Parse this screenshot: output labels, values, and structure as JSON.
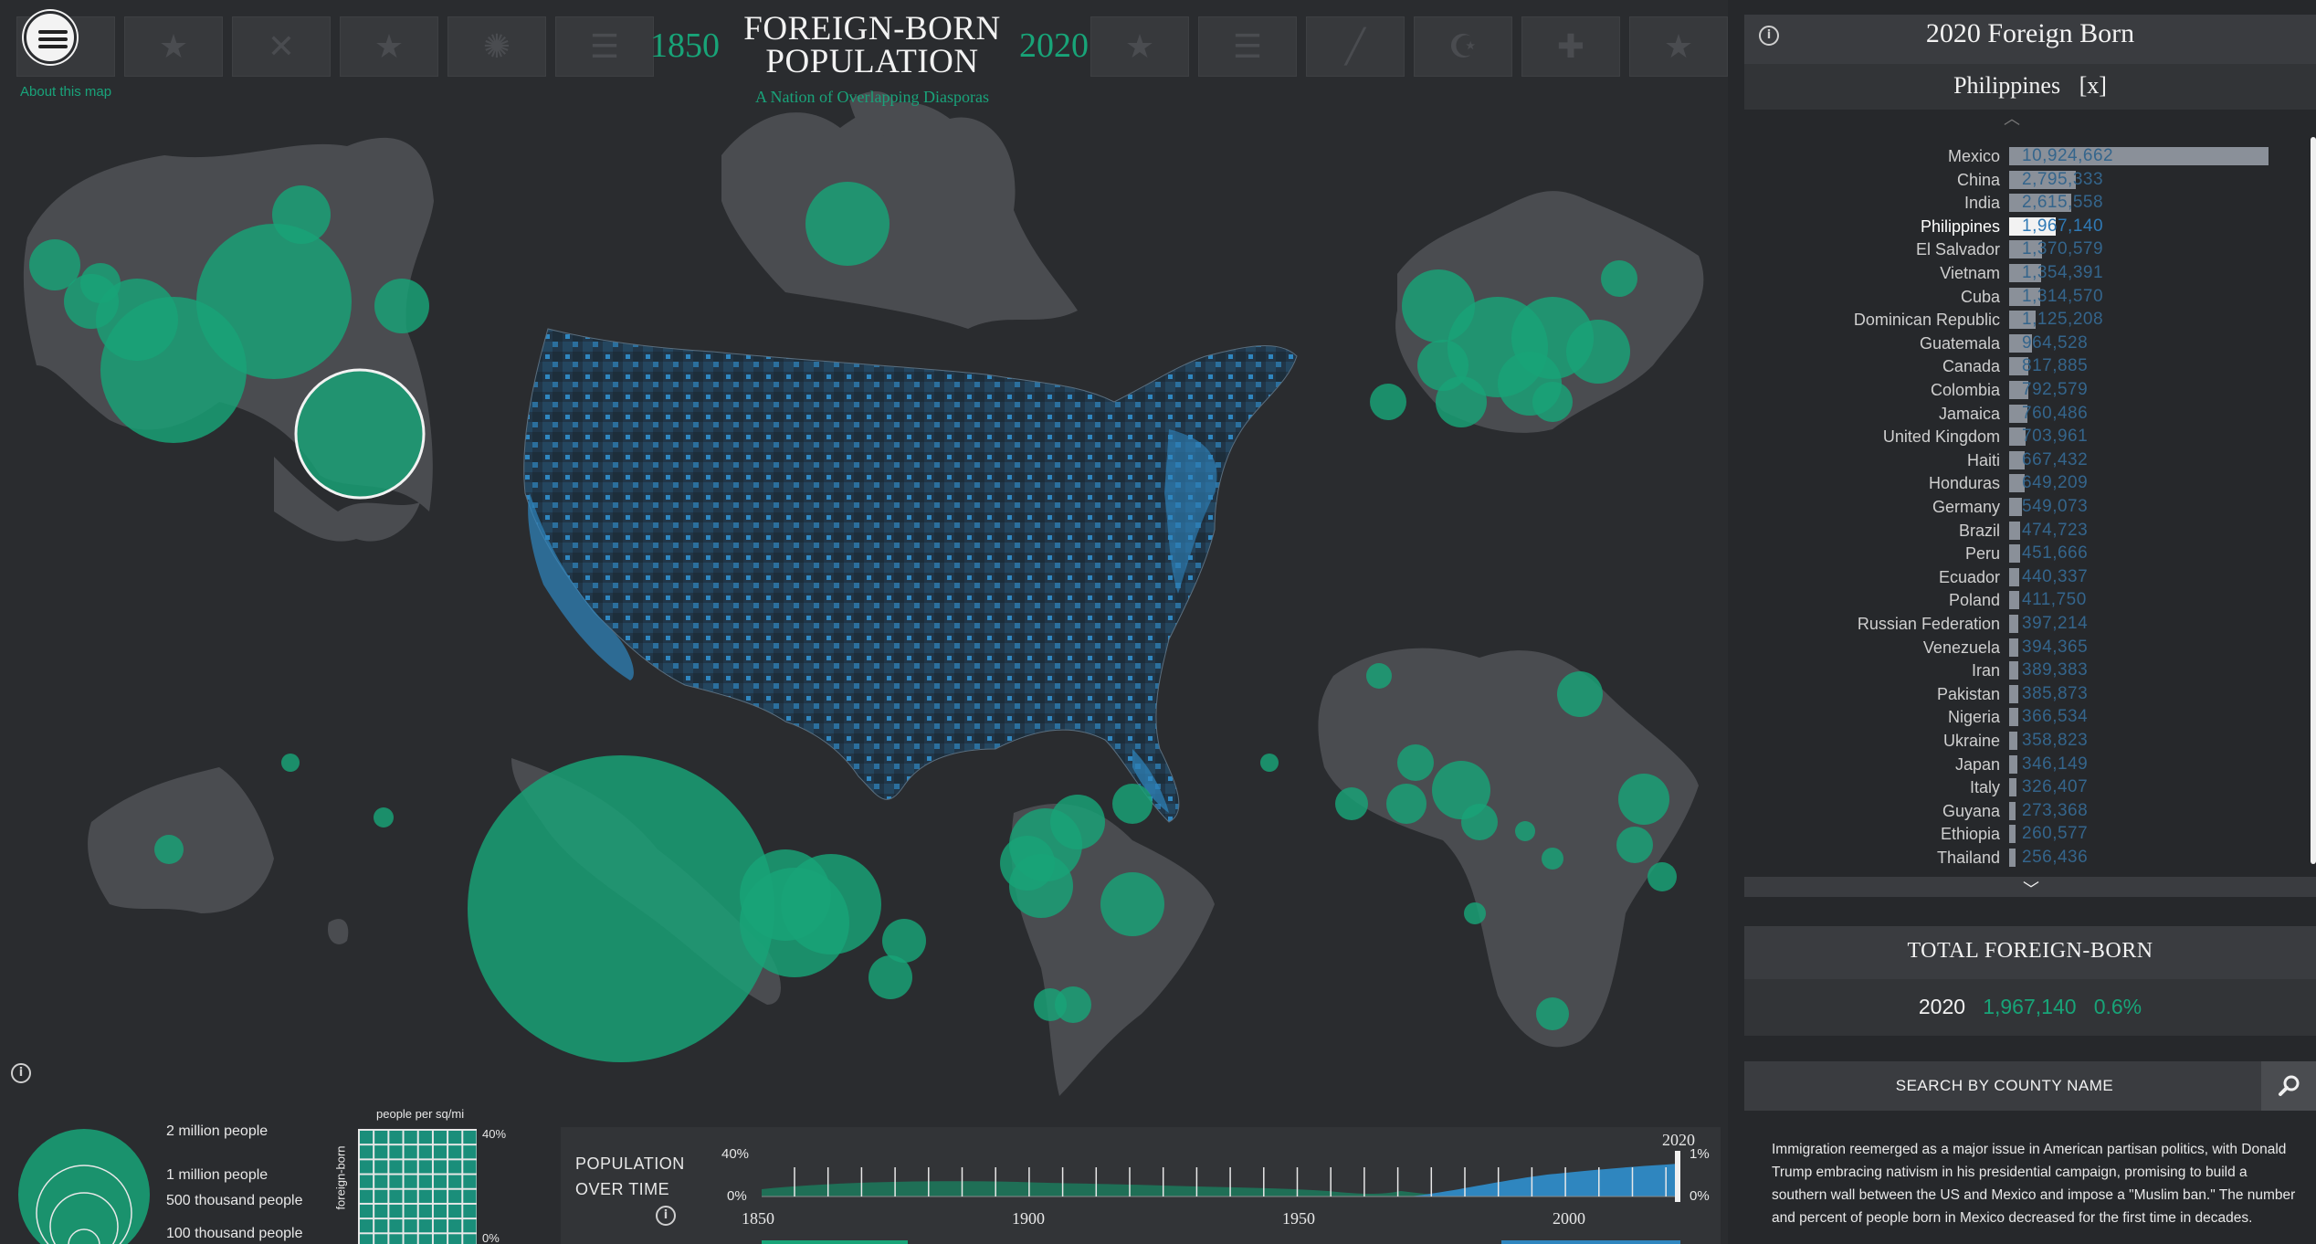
{
  "header": {
    "title_line1": "FOREIGN-BORN",
    "title_line2": "POPULATION",
    "subtitle": "A Nation of Overlapping Diasporas",
    "year_start": "1850",
    "year_end": "2020",
    "about_link": "About this map"
  },
  "colors": {
    "accent_green": "#18a478",
    "map_blue": "#2f79b5",
    "land_gray": "#4a4c50",
    "background": "#2a2c2f"
  },
  "icons": [
    "menu-icon",
    "info-icon",
    "search-icon",
    "chevron-up-icon",
    "chevron-down-icon",
    "close-icon"
  ],
  "legend": {
    "size_labels": [
      "2 million people",
      "1 million people",
      "500 thousand people",
      "100 thousand people"
    ],
    "density_title": "people per sq/mi",
    "density_axis": "foreign-born",
    "density_top": "40%",
    "density_bottom": "0%"
  },
  "timeline": {
    "label_line1": "POPULATION",
    "label_line2": "OVER TIME",
    "selected_year": "2020",
    "y_left_top": "40%",
    "y_left_bottom": "0%",
    "y_right_top": "1%",
    "y_right_bottom": "0%",
    "x_ticks": [
      "1850",
      "1900",
      "1950",
      "2000"
    ]
  },
  "panel": {
    "title": "2020 Foreign Born",
    "selected_country": "Philippines",
    "clear_label": "[x]",
    "countries": [
      {
        "name": "Mexico",
        "value": "10,924,662",
        "count": 10924662
      },
      {
        "name": "China",
        "value": "2,795,333",
        "count": 2795333
      },
      {
        "name": "India",
        "value": "2,615,558",
        "count": 2615558
      },
      {
        "name": "Philippines",
        "value": "1,967,140",
        "count": 1967140,
        "selected": true
      },
      {
        "name": "El Salvador",
        "value": "1,370,579",
        "count": 1370579
      },
      {
        "name": "Vietnam",
        "value": "1,354,391",
        "count": 1354391
      },
      {
        "name": "Cuba",
        "value": "1,314,570",
        "count": 1314570
      },
      {
        "name": "Dominican Republic",
        "value": "1,125,208",
        "count": 1125208
      },
      {
        "name": "Guatemala",
        "value": "964,528",
        "count": 964528
      },
      {
        "name": "Canada",
        "value": "817,885",
        "count": 817885
      },
      {
        "name": "Colombia",
        "value": "792,579",
        "count": 792579
      },
      {
        "name": "Jamaica",
        "value": "760,486",
        "count": 760486
      },
      {
        "name": "United Kingdom",
        "value": "703,961",
        "count": 703961
      },
      {
        "name": "Haiti",
        "value": "667,432",
        "count": 667432
      },
      {
        "name": "Honduras",
        "value": "649,209",
        "count": 649209
      },
      {
        "name": "Germany",
        "value": "549,073",
        "count": 549073
      },
      {
        "name": "Brazil",
        "value": "474,723",
        "count": 474723
      },
      {
        "name": "Peru",
        "value": "451,666",
        "count": 451666
      },
      {
        "name": "Ecuador",
        "value": "440,337",
        "count": 440337
      },
      {
        "name": "Poland",
        "value": "411,750",
        "count": 411750
      },
      {
        "name": "Russian Federation",
        "value": "397,214",
        "count": 397214
      },
      {
        "name": "Venezuela",
        "value": "394,365",
        "count": 394365
      },
      {
        "name": "Iran",
        "value": "389,383",
        "count": 389383
      },
      {
        "name": "Pakistan",
        "value": "385,873",
        "count": 385873
      },
      {
        "name": "Nigeria",
        "value": "366,534",
        "count": 366534
      },
      {
        "name": "Ukraine",
        "value": "358,823",
        "count": 358823
      },
      {
        "name": "Japan",
        "value": "346,149",
        "count": 346149
      },
      {
        "name": "Italy",
        "value": "326,407",
        "count": 326407
      },
      {
        "name": "Guyana",
        "value": "273,368",
        "count": 273368
      },
      {
        "name": "Ethiopia",
        "value": "260,577",
        "count": 260577
      },
      {
        "name": "Thailand",
        "value": "256,436",
        "count": 256436
      }
    ]
  },
  "total": {
    "title": "TOTAL FOREIGN-BORN",
    "year": "2020",
    "count": "1,967,140",
    "percent": "0.6%"
  },
  "search": {
    "label": "SEARCH BY COUNTY NAME"
  },
  "story": {
    "text": "Immigration reemerged as a major issue in American partisan politics, with Donald Trump embracing nativism in his presidential campaign, promising to build a southern wall between the US and Mexico and impose a \"Muslim ban.\" The number and percent of people born in Mexico decreased for the first time in decades."
  }
}
